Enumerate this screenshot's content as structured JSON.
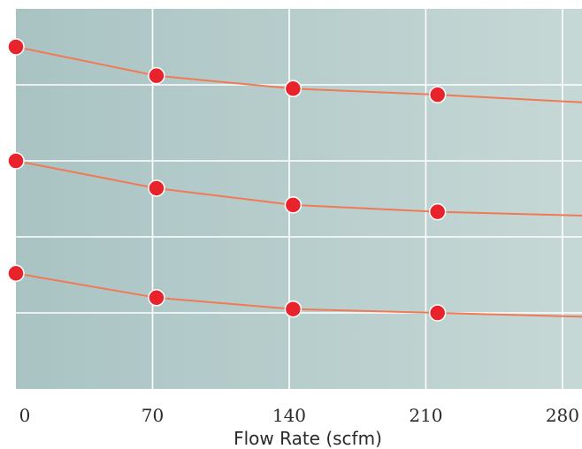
{
  "chart_data": {
    "type": "line",
    "title": "",
    "xlabel": "Flow Rate (scfm)",
    "ylabel": "",
    "xlim": [
      0,
      290
    ],
    "ylim": [
      0,
      5
    ],
    "x_ticks": [
      "0",
      "70",
      "140",
      "210",
      "280"
    ],
    "x_tick_values": [
      0,
      70,
      140,
      210,
      280
    ],
    "y_grid_values": [
      1,
      2,
      3,
      4
    ],
    "grid": true,
    "legend": "none",
    "colors": {
      "line": "#f07a55",
      "marker": "#e8232b",
      "marker_edge": "#ffffff",
      "grid": "#ffffff",
      "background_left": "#a9c3c3",
      "background_right": "#c6d8d6"
    },
    "series": [
      {
        "x": [
          0,
          72,
          142,
          216
        ],
        "y": [
          4.5,
          4.12,
          3.95,
          3.87
        ],
        "tail": {
          "x": 290,
          "y": 3.77
        }
      },
      {
        "x": [
          0,
          72,
          142,
          216
        ],
        "y": [
          3.0,
          2.64,
          2.42,
          2.33
        ],
        "tail": {
          "x": 290,
          "y": 2.28
        }
      },
      {
        "x": [
          0,
          72,
          142,
          216
        ],
        "y": [
          1.52,
          1.2,
          1.05,
          1.0
        ],
        "tail": {
          "x": 290,
          "y": 0.95
        }
      }
    ]
  }
}
